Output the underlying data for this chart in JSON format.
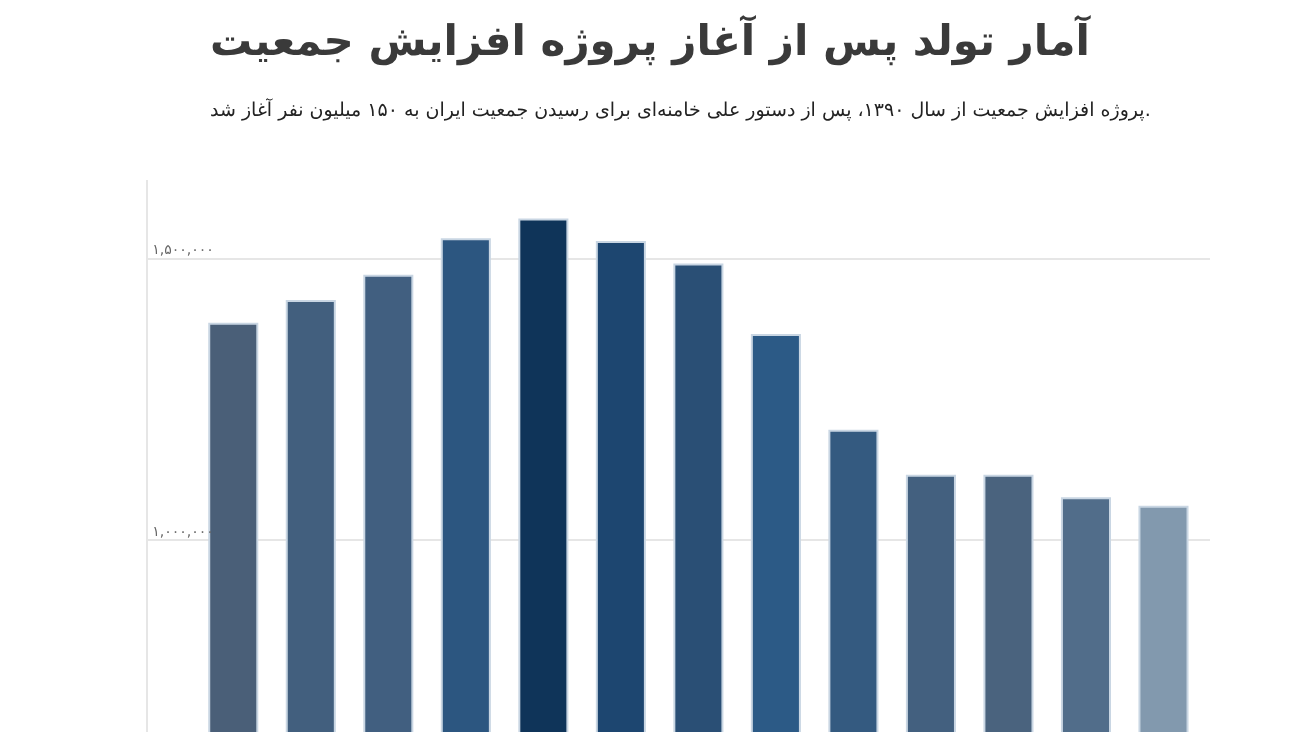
{
  "chart_data": {
    "type": "bar",
    "title": "آمار تولد پس از آغاز پروژه افزایش جمعیت",
    "subtitle": "پروژه افزایش جمعیت از سال ۱۳۹۰، پس از دستور علی خامنه‌ای برای رسیدن جمعیت ایران به ۱۵۰ میلیون نفر آغاز شد.",
    "categories": [
      null,
      null,
      null,
      null,
      null,
      null,
      null,
      null,
      null,
      null,
      null,
      null,
      null
    ],
    "values": [
      1385000,
      1425000,
      1470000,
      1535000,
      1570000,
      1530000,
      1490000,
      1365000,
      1195000,
      1115000,
      1115000,
      1075000,
      1060000
    ],
    "colors": [
      "#4a5f78",
      "#425f7e",
      "#415f80",
      "#2c5680",
      "#0f3459",
      "#1d4670",
      "#2a4f75",
      "#2c5a86",
      "#345a80",
      "#43607f",
      "#4a637e",
      "#516d8a",
      "#8299ae"
    ],
    "ylim": [
      660000,
      1640000
    ],
    "yticks": [
      {
        "value": 1000000,
        "label": "۱,۰۰۰,۰۰۰"
      },
      {
        "value": 1500000,
        "label": "۱,۵۰۰,۰۰۰"
      }
    ],
    "grid": "y",
    "tick_labels": "y"
  }
}
